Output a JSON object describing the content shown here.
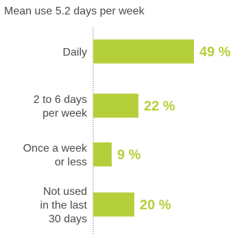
{
  "chart_data": {
    "type": "bar",
    "orientation": "horizontal",
    "title": "Mean use 5.2 days per week",
    "categories": [
      [
        "Daily"
      ],
      [
        "2 to 6 days",
        "per week"
      ],
      [
        "Once a week",
        "or less"
      ],
      [
        "Not used",
        "in the last",
        "30 days"
      ]
    ],
    "values": [
      49,
      22,
      9,
      20
    ],
    "value_labels": [
      "49 %",
      "22 %",
      "9 %",
      "20 %"
    ],
    "unit": "%",
    "xlim": [
      0,
      49
    ],
    "grid": false,
    "colors": {
      "bar": "#b5cf3a",
      "value_text": "#b5cf3a",
      "axis": "#555555",
      "text": "#4a4a4a"
    }
  }
}
